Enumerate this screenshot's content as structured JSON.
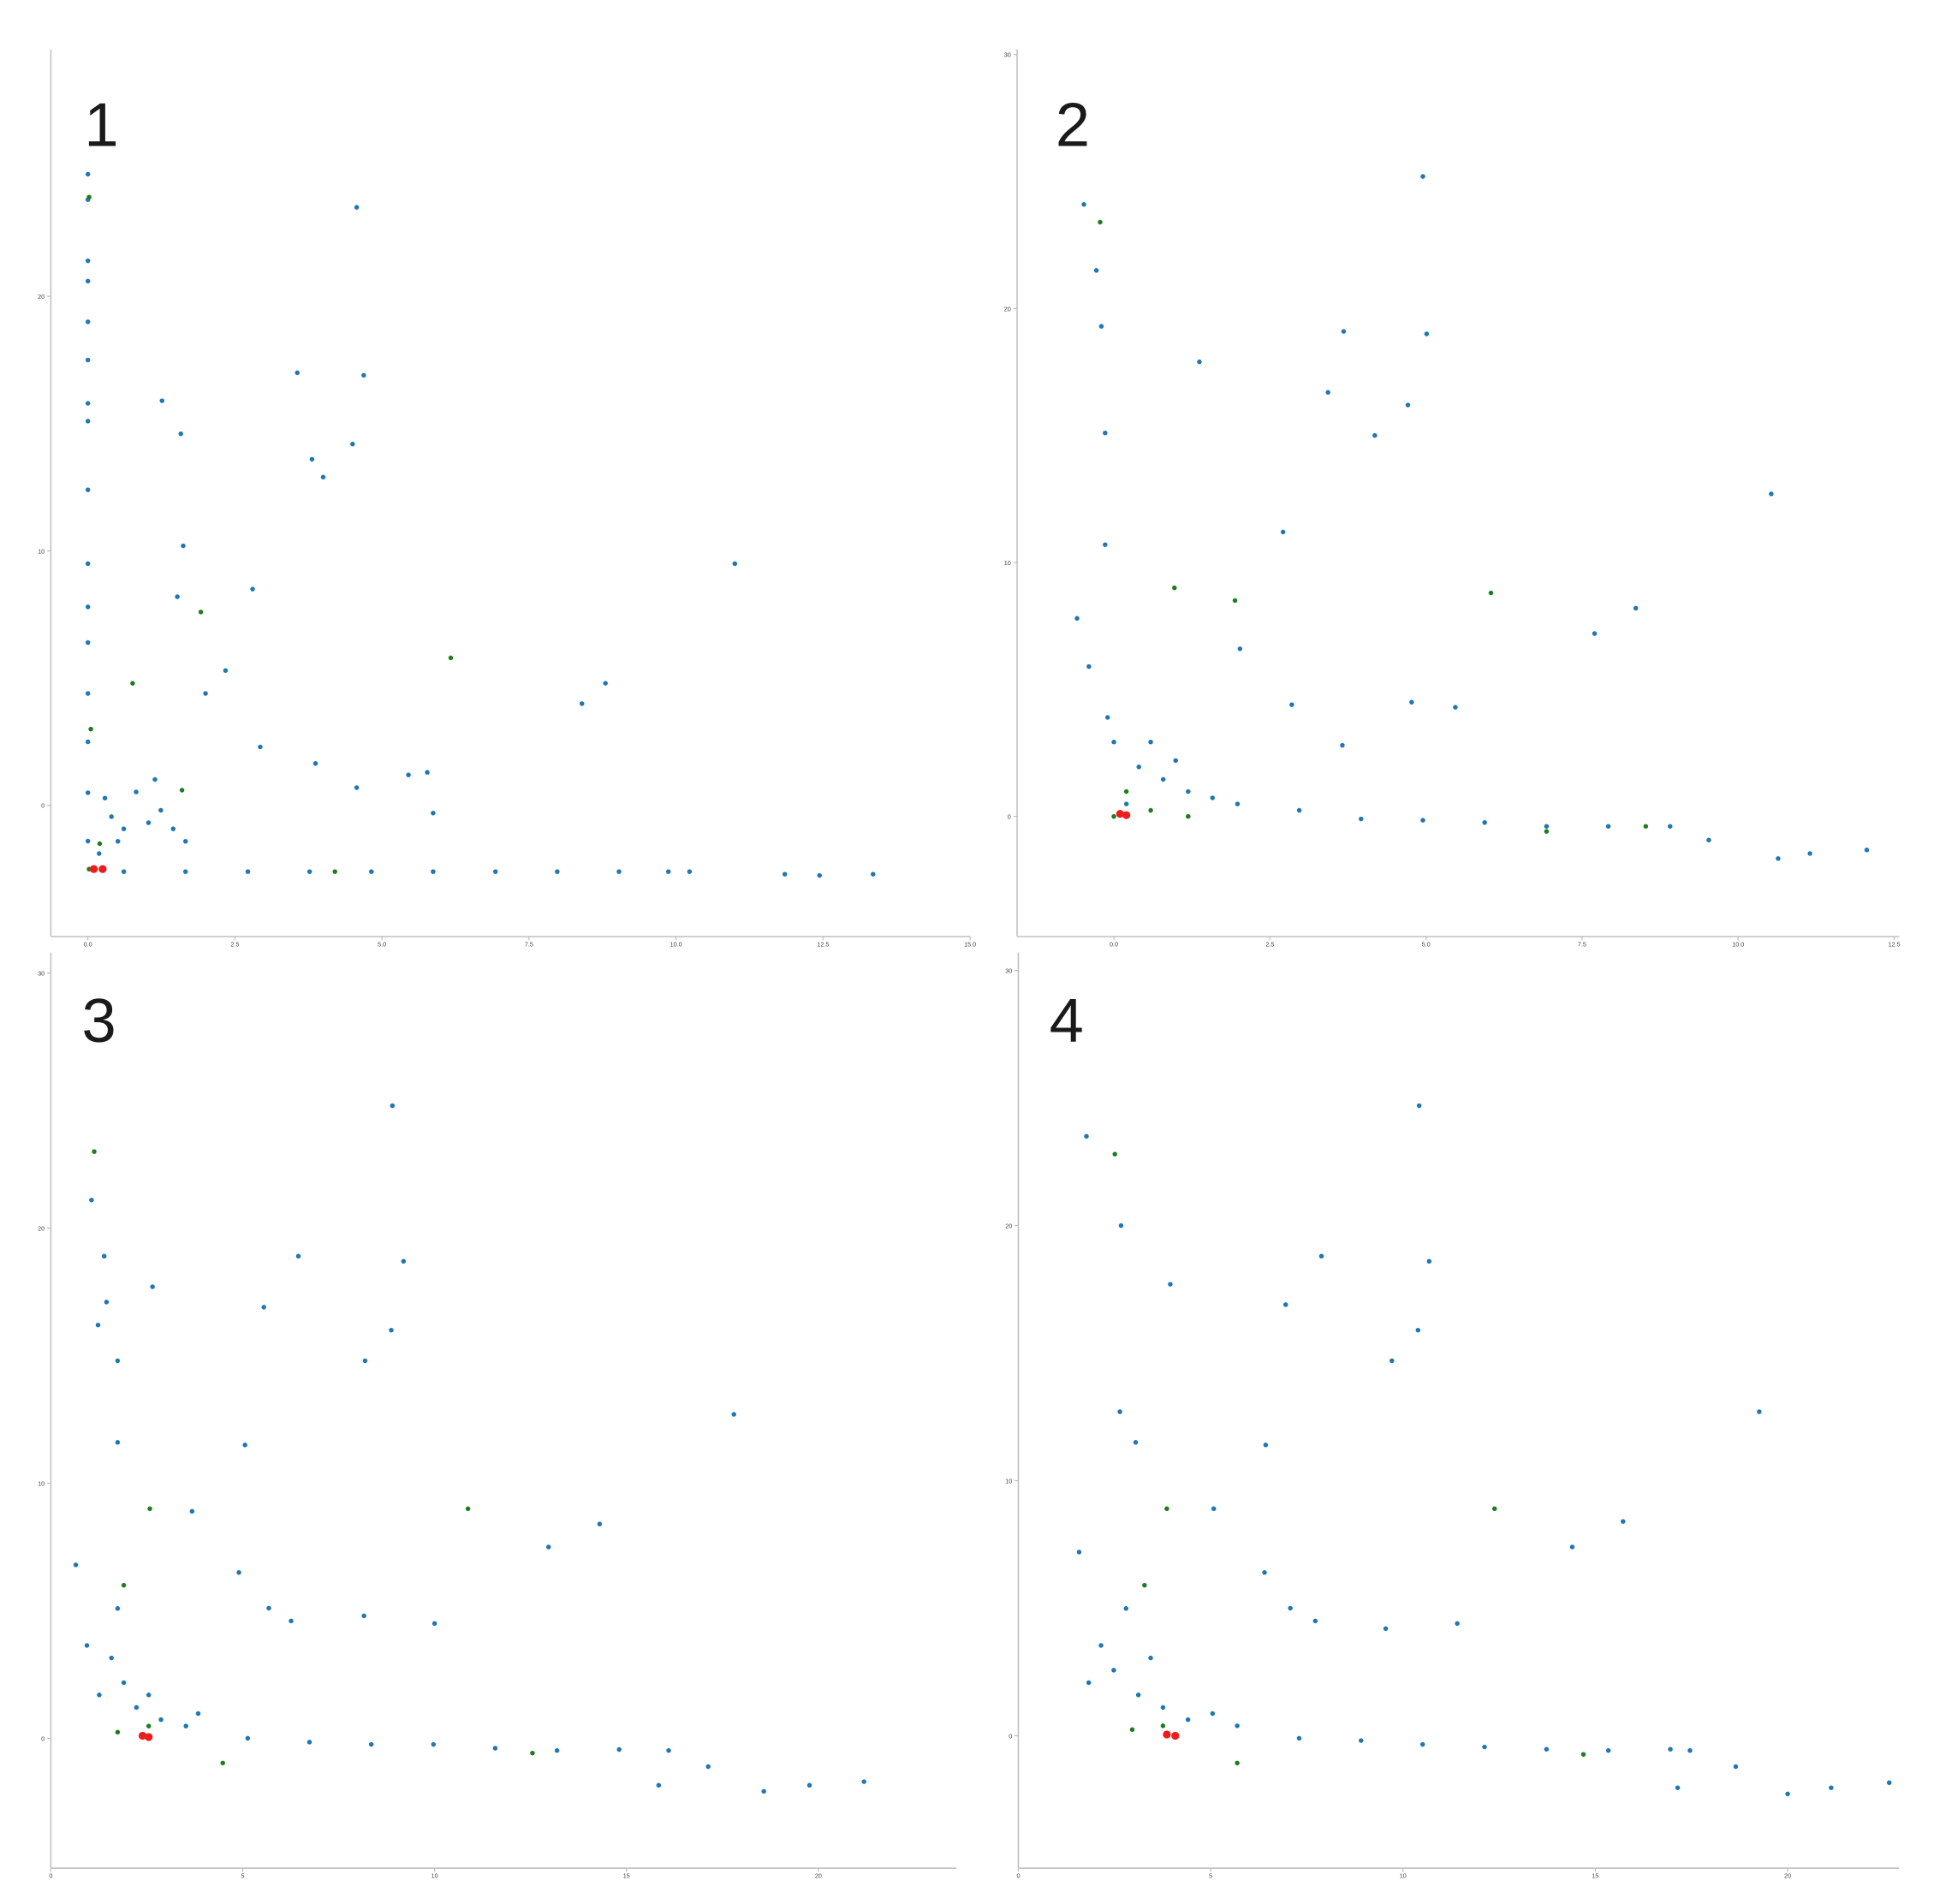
{
  "chart_data": [
    {
      "type": "scatter",
      "title": "1",
      "xlim": [
        -0.63,
        15.0
      ],
      "ylim": [
        -5.15,
        29.7
      ],
      "xticks": [
        {
          "value": 0,
          "label": "0.0"
        },
        {
          "value": 2.5,
          "label": "2.5"
        },
        {
          "value": 5,
          "label": "5.0"
        },
        {
          "value": 7.5,
          "label": "7.5"
        },
        {
          "value": 10,
          "label": "10.0"
        },
        {
          "value": 12.5,
          "label": "12.5"
        },
        {
          "value": 15,
          "label": "15.0"
        }
      ],
      "yticks": [
        0,
        10,
        20
      ],
      "series": [
        {
          "color": "#1f77b4",
          "x": [
            0,
            0,
            0,
            0,
            0,
            0,
            0,
            0,
            0,
            0,
            0,
            0,
            0,
            0,
            0,
            0,
            4.57,
            3.56,
            4.69,
            1.26,
            1.58,
            4.5,
            3.81,
            4.0,
            1.62,
            11.0,
            2.8,
            1.52,
            2.34,
            8.8,
            8.4,
            2.0,
            2.93,
            3.87,
            4.57,
            5.45,
            5.77,
            5.87,
            0.4,
            0.61,
            1.03,
            1.45,
            0.82,
            1.24,
            1.66,
            0.19,
            0.51,
            1.14,
            0.29,
            0.61,
            1.66,
            2.72,
            3.77,
            4.82,
            5.87,
            6.93,
            7.98,
            9.03,
            9.87,
            10.23,
            11.85,
            12.44,
            13.35
          ],
          "values": [
            24.8,
            23.8,
            21.4,
            20.6,
            19,
            17.5,
            15.8,
            15.1,
            12.4,
            9.5,
            7.8,
            6.4,
            4.4,
            2.5,
            0.5,
            -1.4,
            23.5,
            17.0,
            16.9,
            15.9,
            14.6,
            14.2,
            13.6,
            12.9,
            10.2,
            9.5,
            8.5,
            8.2,
            5.3,
            4.8,
            4.0,
            4.4,
            2.3,
            1.65,
            0.7,
            1.2,
            1.3,
            -0.3,
            -0.44,
            -0.92,
            -0.68,
            -0.92,
            0.53,
            -0.19,
            -1.41,
            -1.89,
            -1.41,
            1.02,
            0.29,
            -2.6,
            -2.6,
            -2.6,
            -2.6,
            -2.6,
            -2.6,
            -2.6,
            -2.6,
            -2.6,
            -2.6,
            -2.6,
            -2.7,
            -2.75,
            -2.7
          ]
        },
        {
          "color": "#1e7d1e",
          "x": [
            0.02,
            0.2,
            0.05,
            0.76,
            1.92,
            6.17,
            1.6,
            4.2,
            0.02
          ],
          "values": [
            -2.5,
            -1.5,
            3.0,
            4.8,
            7.6,
            5.8,
            0.6,
            -2.6,
            23.9
          ]
        },
        {
          "color": "#ee1c1c",
          "x": [
            0.1,
            0.25
          ],
          "values": [
            -2.5,
            -2.5
          ]
        }
      ]
    },
    {
      "type": "scatter",
      "title": "2",
      "xlim": [
        -1.55,
        12.58
      ],
      "ylim": [
        -4.73,
        30.2
      ],
      "xticks": [
        {
          "value": 0,
          "label": "0.0"
        },
        {
          "value": 2.5,
          "label": "2.5"
        },
        {
          "value": 5,
          "label": "5.0"
        },
        {
          "value": 7.5,
          "label": "7.5"
        },
        {
          "value": 10,
          "label": "10.0"
        },
        {
          "value": 12.5,
          "label": "12.5"
        }
      ],
      "yticks": [
        0,
        10,
        20,
        30
      ],
      "series": [
        {
          "color": "#1f77b4",
          "x": [
            4.95,
            -0.48,
            3.68,
            5.01,
            1.37,
            3.43,
            4.71,
            4.18,
            10.53,
            2.71,
            8.36,
            7.7,
            2.02,
            -0.59,
            -0.4,
            -0.14,
            -0.14,
            -0.2,
            -0.28,
            4.77,
            5.47,
            3.66,
            2.85,
            0.4,
            0.79,
            1.19,
            1.58,
            0,
            -0.1,
            0.2,
            0.59,
            0.99,
            1.98,
            2.97,
            3.96,
            4.95,
            5.94,
            6.93,
            7.92,
            8.91,
            9.53,
            10.64,
            11.15,
            12.06
          ],
          "values": [
            25.2,
            24.1,
            19.1,
            19.0,
            17.9,
            16.7,
            16.2,
            15.0,
            12.7,
            11.2,
            8.2,
            7.2,
            6.6,
            7.8,
            5.9,
            10.7,
            15.1,
            19.3,
            21.5,
            4.5,
            4.3,
            2.8,
            4.4,
            1.95,
            1.46,
            0.98,
            0.73,
            2.93,
            3.9,
            0.49,
            2.93,
            2.2,
            0.49,
            0.24,
            -0.1,
            -0.15,
            -0.24,
            -0.39,
            -0.39,
            -0.39,
            -0.93,
            -1.66,
            -1.46,
            -1.32
          ]
        },
        {
          "color": "#1e7d1e",
          "x": [
            0,
            0.2,
            0.59,
            1.19,
            6.93,
            8.52,
            -0.22,
            0.97,
            6.04,
            1.94
          ],
          "values": [
            0,
            0.98,
            0.24,
            0,
            -0.59,
            -0.39,
            23.4,
            9.0,
            8.8,
            8.5
          ]
        },
        {
          "color": "#ee1c1c",
          "x": [
            0.1,
            0.2
          ],
          "values": [
            0.1,
            0.05
          ]
        }
      ]
    },
    {
      "type": "scatter",
      "title": "3",
      "xlim": [
        0,
        23.6
      ],
      "ylim": [
        -5.09,
        30.8
      ],
      "xticks": [
        0,
        5,
        10,
        15,
        20
      ],
      "yticks": [
        0,
        10,
        20,
        30
      ],
      "series": [
        {
          "color": "#1f77b4",
          "x": [
            8.9,
            1.06,
            1.39,
            1.45,
            1.23,
            6.45,
            9.19,
            2.65,
            5.55,
            8.87,
            1.74,
            8.19,
            17.8,
            5.06,
            1.74,
            3.68,
            14.3,
            12.97,
            0.65,
            4.9,
            5.68,
            8.16,
            10.0,
            6.26,
            1.58,
            1.9,
            2.23,
            2.87,
            3.52,
            1.26,
            0.94,
            3.84,
            1.74,
            2.55,
            5.13,
            6.74,
            8.35,
            9.97,
            11.58,
            13.19,
            14.81,
            16.1,
            17.13,
            15.84,
            18.58,
            19.77,
            21.19
          ],
          "values": [
            24.8,
            21.1,
            18.9,
            17.1,
            16.2,
            18.9,
            18.7,
            17.7,
            16.9,
            16.0,
            14.8,
            14.8,
            12.7,
            11.5,
            11.6,
            8.9,
            8.4,
            7.5,
            6.8,
            6.5,
            5.1,
            4.8,
            4.5,
            4.6,
            3.15,
            2.18,
            1.21,
            0.73,
            0.48,
            1.7,
            3.64,
            0.97,
            5.09,
            1.7,
            0,
            -0.15,
            -0.24,
            -0.24,
            -0.39,
            -0.48,
            -0.44,
            -0.48,
            -1.11,
            -1.84,
            -2.08,
            -1.84,
            -1.7
          ]
        },
        {
          "color": "#1e7d1e",
          "x": [
            1.74,
            2.55,
            4.48,
            12.55,
            1.13,
            2.58,
            10.87,
            1.9
          ],
          "values": [
            0.24,
            0.48,
            -0.97,
            -0.58,
            23.0,
            9.0,
            9.0,
            6.0
          ]
        },
        {
          "color": "#ee1c1c",
          "x": [
            2.39,
            2.55
          ],
          "values": [
            0.1,
            0.05
          ]
        }
      ]
    },
    {
      "type": "scatter",
      "title": "4",
      "xlim": [
        0,
        22.9
      ],
      "ylim": [
        -5.19,
        30.7
      ],
      "xticks": [
        0,
        5,
        10,
        15,
        20
      ],
      "yticks": [
        0,
        10,
        20,
        30
      ],
      "series": [
        {
          "color": "#1f77b4",
          "x": [
            10.42,
            1.77,
            2.67,
            7.88,
            3.95,
            10.68,
            6.95,
            10.39,
            9.71,
            2.64,
            19.26,
            6.43,
            3.05,
            5.08,
            15.72,
            14.4,
            1.58,
            6.4,
            7.07,
            11.41,
            9.55,
            7.72,
            2.48,
            3.12,
            3.76,
            4.41,
            5.05,
            2.15,
            2.8,
            1.83,
            5.69,
            3.44,
            7.3,
            8.91,
            10.51,
            12.12,
            13.73,
            15.34,
            16.95,
            17.46,
            18.65,
            17.14,
            20.0,
            21.13,
            22.64
          ],
          "values": [
            24.7,
            23.5,
            20.0,
            18.8,
            17.7,
            18.6,
            16.9,
            15.9,
            14.7,
            12.7,
            12.7,
            11.4,
            11.5,
            8.9,
            8.4,
            7.4,
            7.2,
            6.4,
            5.0,
            4.4,
            4.2,
            4.5,
            2.57,
            1.6,
            1.11,
            0.63,
            0.87,
            3.54,
            4.99,
            2.08,
            0.39,
            3.05,
            -0.1,
            -0.19,
            -0.34,
            -0.44,
            -0.53,
            -0.58,
            -0.53,
            -0.58,
            -1.21,
            -2.04,
            -2.28,
            -2.04,
            -1.84
          ]
        },
        {
          "color": "#1e7d1e",
          "x": [
            2.96,
            3.76,
            5.69,
            14.69,
            2.51,
            3.86,
            12.38,
            3.28
          ],
          "values": [
            0.24,
            0.39,
            -1.07,
            -0.73,
            22.8,
            8.9,
            8.9,
            5.9
          ]
        },
        {
          "color": "#ee1c1c",
          "x": [
            3.86,
            4.08
          ],
          "values": [
            0.05,
            0.0
          ]
        }
      ]
    }
  ]
}
